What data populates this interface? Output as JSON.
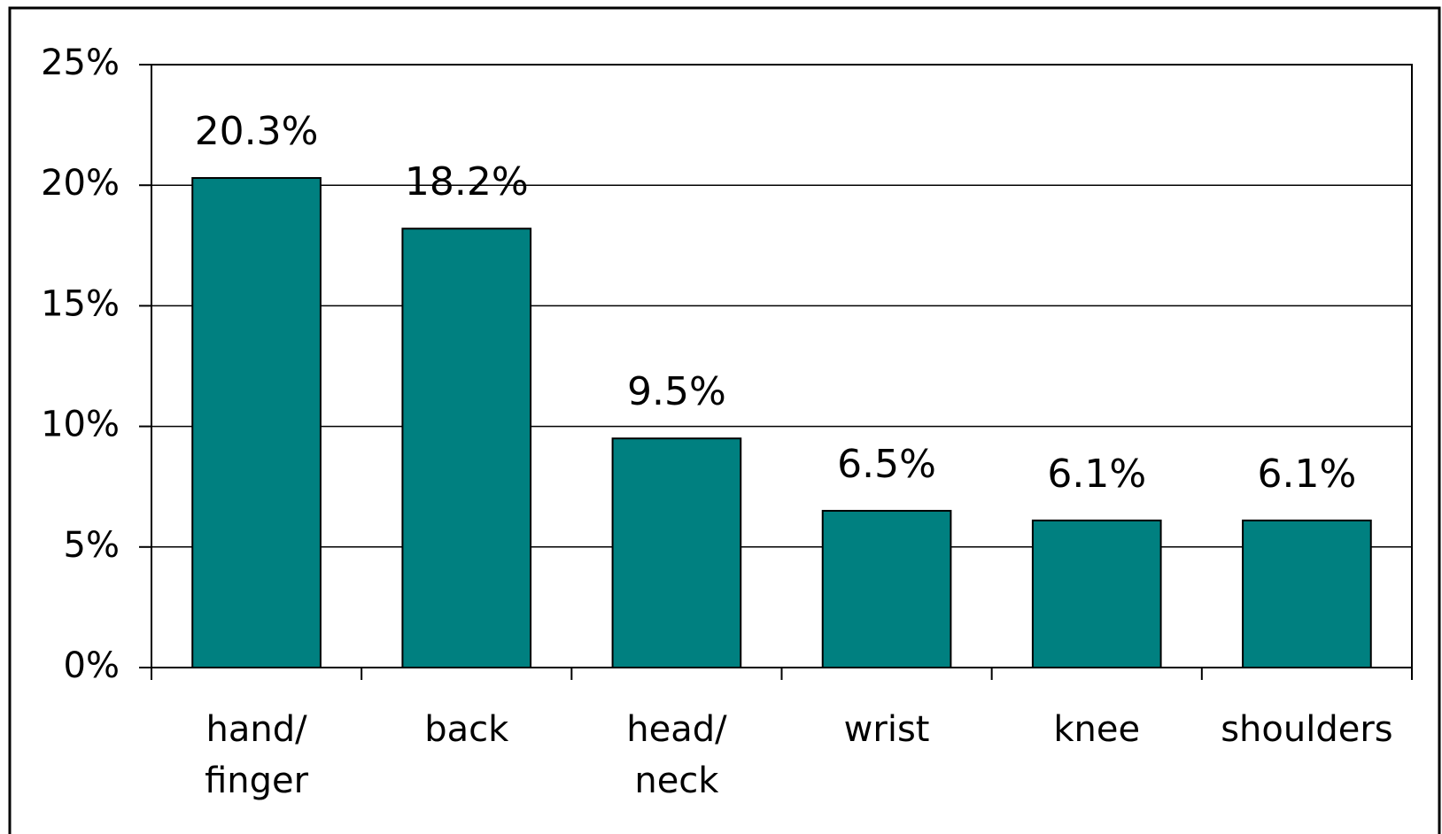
{
  "chart_data": {
    "type": "bar",
    "categories": [
      "hand/\nfinger",
      "back",
      "head/\nneck",
      "wrist",
      "knee",
      "shoulders"
    ],
    "values": [
      20.3,
      18.2,
      9.5,
      6.5,
      6.1,
      6.1
    ],
    "value_labels": [
      "20.3%",
      "18.2%",
      "9.5%",
      "6.5%",
      "6.1%",
      "6.1%"
    ],
    "color": "#008080",
    "ylim": [
      0,
      25
    ],
    "yticks": [
      {
        "value": 0,
        "label": "0%"
      },
      {
        "value": 5,
        "label": "5%"
      },
      {
        "value": 10,
        "label": "10%"
      },
      {
        "value": 15,
        "label": "15%"
      },
      {
        "value": 20,
        "label": "20%"
      },
      {
        "value": 25,
        "label": "25%"
      }
    ],
    "grid": true
  }
}
